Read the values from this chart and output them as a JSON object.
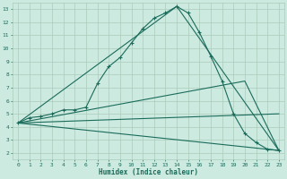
{
  "xlabel": "Humidex (Indice chaleur)",
  "bg_color": "#cceae0",
  "grid_color": "#aaccbb",
  "line_color": "#1a6b5a",
  "xlim": [
    -0.5,
    23.5
  ],
  "ylim": [
    1.5,
    13.5
  ],
  "xticks": [
    0,
    1,
    2,
    3,
    4,
    5,
    6,
    7,
    8,
    9,
    10,
    11,
    12,
    13,
    14,
    15,
    16,
    17,
    18,
    19,
    20,
    21,
    22,
    23
  ],
  "yticks": [
    2,
    3,
    4,
    5,
    6,
    7,
    8,
    9,
    10,
    11,
    12,
    13
  ],
  "line1_x": [
    0,
    1,
    2,
    3,
    4,
    5,
    6,
    7,
    8,
    9,
    10,
    11,
    12,
    13,
    14,
    15,
    16,
    17,
    18,
    19,
    20,
    21,
    22,
    23
  ],
  "line1_y": [
    4.3,
    4.7,
    4.8,
    5.0,
    5.3,
    5.3,
    5.5,
    7.3,
    8.6,
    9.3,
    10.4,
    11.5,
    12.3,
    12.7,
    13.2,
    12.7,
    11.2,
    9.4,
    7.5,
    5.0,
    3.5,
    2.8,
    2.3,
    2.2
  ],
  "line2_x": [
    0,
    14,
    23
  ],
  "line2_y": [
    4.3,
    13.2,
    2.2
  ],
  "line3_x": [
    0,
    23
  ],
  "line3_y": [
    4.3,
    5.0
  ],
  "line4_x": [
    0,
    20,
    23
  ],
  "line4_y": [
    4.3,
    7.5,
    2.2
  ],
  "line5_x": [
    0,
    23
  ],
  "line5_y": [
    4.3,
    2.2
  ]
}
